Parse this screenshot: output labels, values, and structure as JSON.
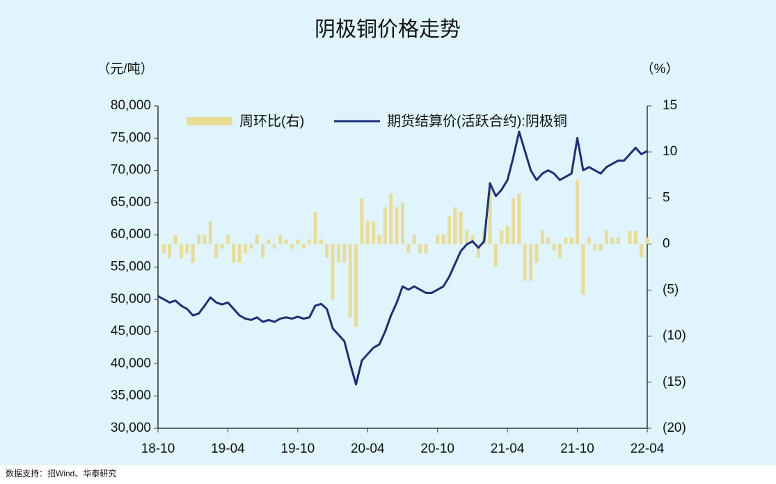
{
  "chart_data": {
    "type": "bar-line",
    "title": "阴极铜价格走势",
    "y_label": "（元/吨）",
    "y2_label": "（%）",
    "source": "数据支持：招Wind、华泰研究",
    "categories": [
      "18-10",
      null,
      null,
      null,
      null,
      null,
      null,
      null,
      null,
      null,
      null,
      null,
      "19-04",
      null,
      null,
      null,
      null,
      null,
      null,
      null,
      null,
      null,
      null,
      null,
      "19-10",
      null,
      null,
      null,
      null,
      null,
      null,
      null,
      null,
      null,
      null,
      null,
      "20-04",
      null,
      null,
      null,
      null,
      null,
      null,
      null,
      null,
      null,
      null,
      null,
      "20-10",
      null,
      null,
      null,
      null,
      null,
      null,
      null,
      null,
      null,
      null,
      null,
      "21-04",
      null,
      null,
      null,
      null,
      null,
      null,
      null,
      null,
      null,
      null,
      null,
      "21-10",
      null,
      null,
      null,
      null,
      null,
      null,
      null,
      null,
      null,
      null,
      null,
      "22-04"
    ],
    "series": [
      {
        "name": "周环比(右)",
        "type": "bar",
        "axis": "y2",
        "color": "#e8dc96",
        "values": [
          0,
          -1,
          -1.5,
          1,
          -1.5,
          -1,
          -2,
          1,
          1,
          2.5,
          -1.5,
          -0.5,
          1,
          -2,
          -2,
          -1,
          -0.5,
          1,
          -1.5,
          0.5,
          -0.5,
          1,
          0.5,
          -0.5,
          0.5,
          -0.5,
          0.5,
          3.5,
          0.5,
          -1.5,
          -6,
          -2,
          -2,
          -8,
          -9,
          5,
          2.5,
          2.5,
          1,
          4,
          5.5,
          4,
          4.5,
          -1,
          1,
          -1,
          -1,
          0,
          1,
          1,
          3,
          4,
          3.5,
          1.5,
          1,
          -1.5,
          1.5,
          6,
          -2.5,
          1.5,
          2,
          5,
          5.5,
          -4,
          -4,
          -2,
          1.5,
          0.7,
          -0.7,
          -1.5,
          0.7,
          0.7,
          7,
          -5.5,
          0.7,
          -0.7,
          -0.7,
          1.5,
          0.7,
          0.7,
          0,
          1.4,
          1.4,
          -1.4,
          0.7
        ]
      },
      {
        "name": "期货结算价(活跃合约):阴极铜",
        "type": "line",
        "color": "#1b2f7c",
        "values": [
          50500,
          50000,
          49500,
          49800,
          49000,
          48500,
          47500,
          47800,
          49000,
          50300,
          49500,
          49200,
          49500,
          48500,
          47500,
          47000,
          46800,
          47200,
          46500,
          46800,
          46500,
          47000,
          47200,
          47000,
          47300,
          47000,
          47200,
          49000,
          49300,
          48500,
          45500,
          44500,
          43500,
          40000,
          36800,
          40500,
          41500,
          42500,
          43000,
          45000,
          47500,
          49500,
          52000,
          51500,
          52000,
          51500,
          51000,
          51000,
          51500,
          52000,
          53500,
          55500,
          57500,
          58500,
          59000,
          58000,
          59000,
          68000,
          66000,
          67000,
          68500,
          72000,
          76000,
          73000,
          70000,
          68500,
          69500,
          70000,
          69500,
          68500,
          69000,
          69500,
          75000,
          70000,
          70500,
          70000,
          69500,
          70500,
          71000,
          71500,
          71500,
          72500,
          73500,
          72500,
          73000
        ]
      }
    ],
    "ylim": [
      30000,
      80000
    ],
    "yticks": [
      {
        "value": 30000,
        "label": "30,000"
      },
      {
        "value": 35000,
        "label": "35,000"
      },
      {
        "value": 40000,
        "label": "40,000"
      },
      {
        "value": 45000,
        "label": "45,000"
      },
      {
        "value": 50000,
        "label": "50,000"
      },
      {
        "value": 55000,
        "label": "55,000"
      },
      {
        "value": 60000,
        "label": "60,000"
      },
      {
        "value": 65000,
        "label": "65,000"
      },
      {
        "value": 70000,
        "label": "70,000"
      },
      {
        "value": 75000,
        "label": "75,000"
      },
      {
        "value": 80000,
        "label": "80,000"
      }
    ],
    "y2lim": [
      -20,
      15
    ],
    "y2ticks": [
      {
        "value": -20,
        "label": "(20)"
      },
      {
        "value": -15,
        "label": "(15)"
      },
      {
        "value": -10,
        "label": "(10)"
      },
      {
        "value": -5,
        "label": "(5)"
      },
      0,
      5,
      10,
      15
    ],
    "legend": "top"
  }
}
